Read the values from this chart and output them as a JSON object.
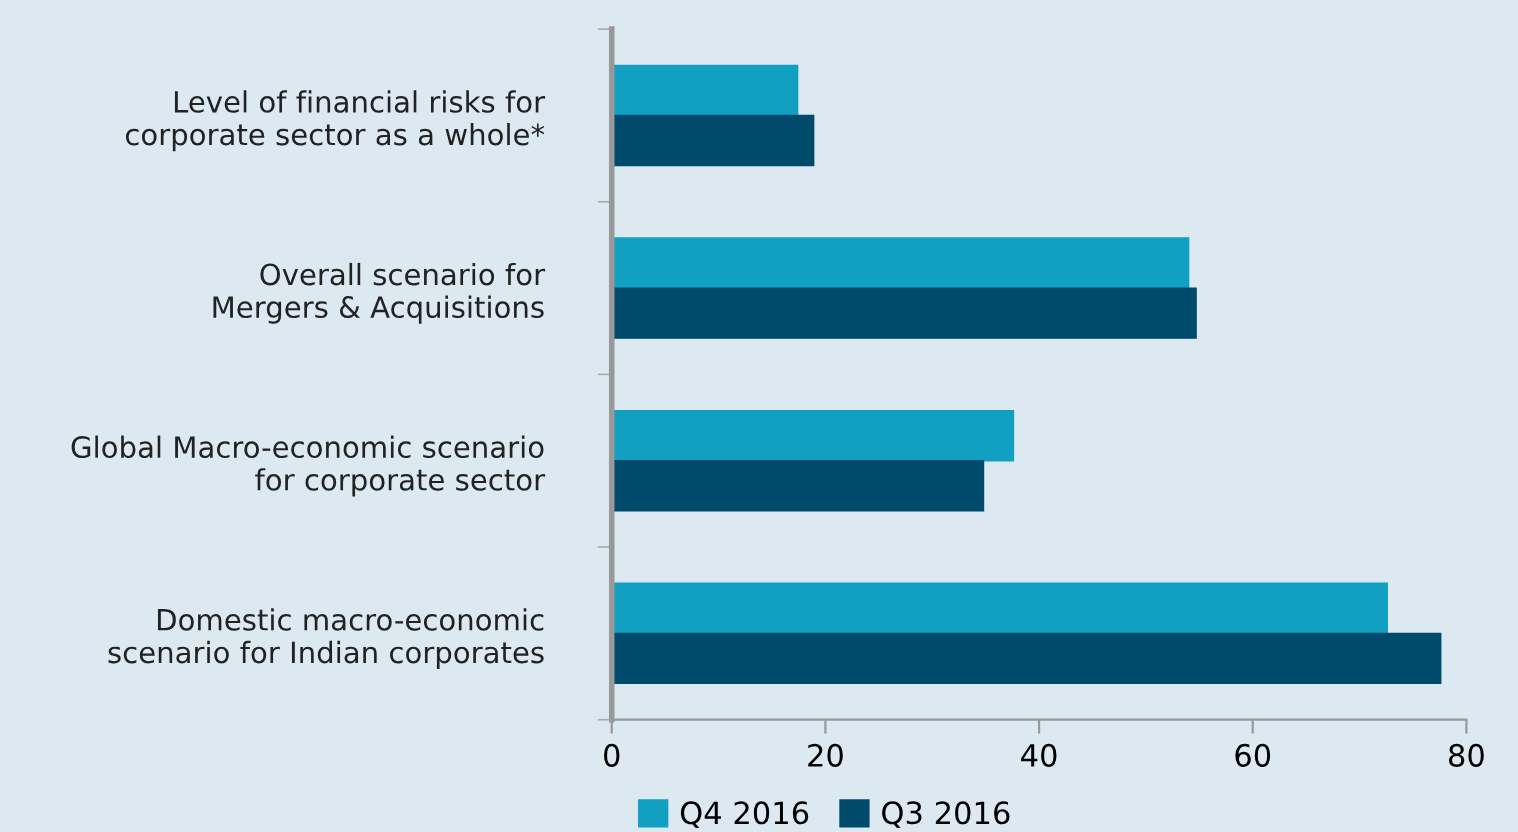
{
  "chart_data": {
    "type": "bar",
    "orientation": "horizontal",
    "categories": [
      "Level of financial risks for\ncorporate sector as a whole*",
      "Overall scenario for\nMergers & Acquisitions",
      "Global Macro-economic scenario\nfor corporate sector",
      "Domestic macro-economic\nscenario for Indian corporates"
    ],
    "series": [
      {
        "name": "Q4 2016",
        "color": "#119fc2",
        "values": [
          17.4,
          54.0,
          37.6,
          72.6
        ]
      },
      {
        "name": "Q3 2016",
        "color": "#004b6b",
        "values": [
          18.9,
          54.7,
          34.8,
          77.6
        ]
      }
    ],
    "xlim": [
      0,
      80
    ],
    "xticks": [
      0,
      20,
      40,
      60,
      80
    ],
    "grid": false,
    "legend": "bottom"
  }
}
